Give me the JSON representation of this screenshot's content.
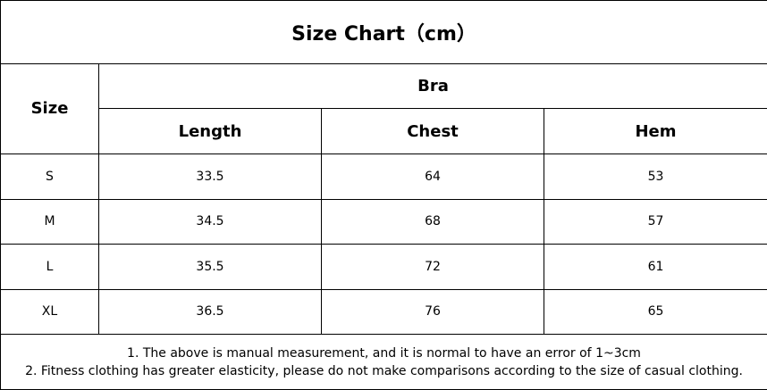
{
  "title": "Size Chart（cm）",
  "table": {
    "size_header": "Size",
    "group_header": "Bra",
    "columns": [
      "Length",
      "Chest",
      "Hem"
    ],
    "rows": [
      [
        "S",
        33.5,
        64,
        53
      ],
      [
        "M",
        34.5,
        68,
        57
      ],
      [
        "L",
        35.5,
        72,
        61
      ],
      [
        "XL",
        36.5,
        76,
        65
      ]
    ]
  },
  "notes": [
    "1. The above is manual measurement, and it is normal to have an error of 1~3cm",
    "2. Fitness clothing has greater elasticity, please do not make comparisons according to the size of casual clothing."
  ]
}
